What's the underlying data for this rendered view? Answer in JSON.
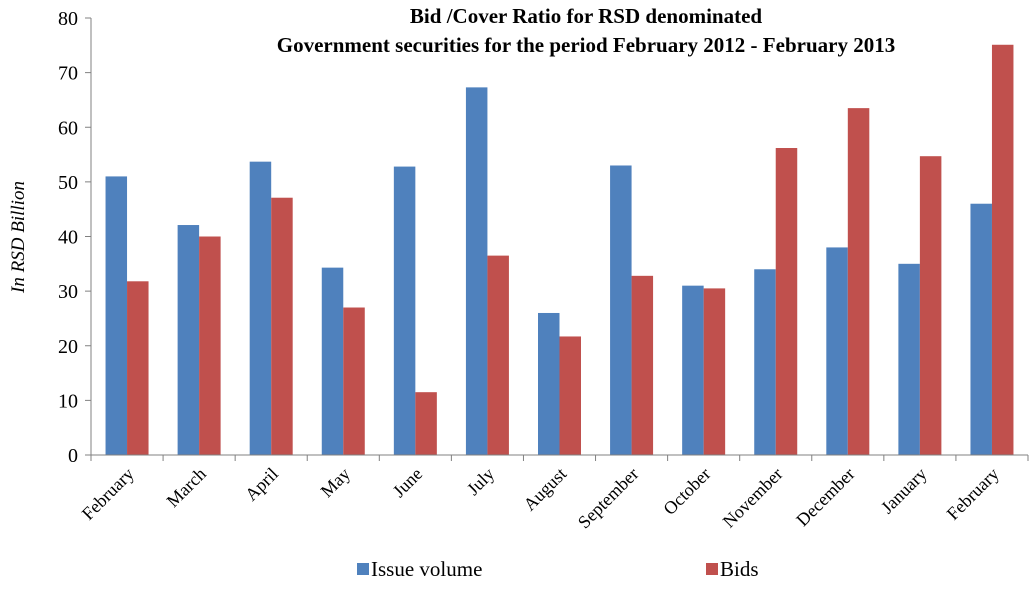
{
  "chart_data": {
    "type": "bar",
    "title": [
      "Bid /Cover Ratio for RSD denominated",
      "Government securities for the period February 2012 - February 2013"
    ],
    "xlabel": "",
    "ylabel": "In RSD Billion",
    "ylim": [
      0,
      80
    ],
    "yticks": [
      0,
      10,
      20,
      30,
      40,
      50,
      60,
      70,
      80
    ],
    "categories": [
      "February",
      "March",
      "April",
      "May",
      "June",
      "July",
      "August",
      "September",
      "October",
      "November",
      "December",
      "January",
      "February"
    ],
    "series": [
      {
        "name": "Issue volume",
        "color": "#4f81bd",
        "values": [
          51,
          42.1,
          53.7,
          34.3,
          52.8,
          67.3,
          26,
          53,
          31,
          34,
          38,
          35,
          46
        ]
      },
      {
        "name": "Bids",
        "color": "#c0504d",
        "values": [
          31.8,
          40,
          47.1,
          27,
          11.5,
          36.5,
          21.7,
          32.8,
          30.5,
          56.2,
          63.5,
          54.7,
          75.1
        ]
      }
    ],
    "legend": "bottom",
    "grid": false
  }
}
